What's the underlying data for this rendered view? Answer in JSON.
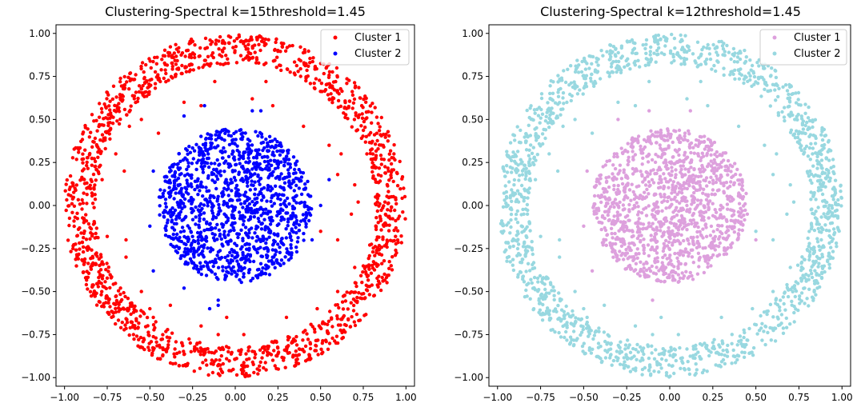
{
  "chart_data": [
    {
      "type": "scatter",
      "title": "Clustering-Spectral k=15threshold=1.45",
      "xlabel": "",
      "ylabel": "",
      "xlim": [
        -1.05,
        1.05
      ],
      "ylim": [
        -1.05,
        1.05
      ],
      "xticks": [
        -1.0,
        -0.75,
        -0.5,
        -0.25,
        0.0,
        0.25,
        0.5,
        0.75,
        1.0
      ],
      "xtick_labels": [
        "−1.00",
        "−0.75",
        "−0.50",
        "−0.25",
        "0.00",
        "0.25",
        "0.50",
        "0.75",
        "1.00"
      ],
      "yticks": [
        -1.0,
        -0.75,
        -0.5,
        -0.25,
        0.0,
        0.25,
        0.5,
        0.75,
        1.0
      ],
      "ytick_labels": [
        "−1.00",
        "−0.75",
        "−0.50",
        "−0.25",
        "0.00",
        "0.25",
        "0.50",
        "0.75",
        "1.00"
      ],
      "grid": false,
      "legend": {
        "position": "top-right"
      },
      "series": [
        {
          "name": "Cluster 1",
          "color": "#ff0000",
          "shape": "ring",
          "r_inner": 0.82,
          "r_outer": 1.0,
          "count": 1500,
          "stray_points": [
            [
              -0.62,
              0.46
            ],
            [
              -0.55,
              0.5
            ],
            [
              -0.45,
              0.42
            ],
            [
              -0.3,
              0.6
            ],
            [
              -0.2,
              0.58
            ],
            [
              0.1,
              0.62
            ],
            [
              0.22,
              0.58
            ],
            [
              0.4,
              0.46
            ],
            [
              0.55,
              0.35
            ],
            [
              0.62,
              0.3
            ],
            [
              0.6,
              0.18
            ],
            [
              0.7,
              0.12
            ],
            [
              -0.65,
              0.2
            ],
            [
              -0.7,
              0.3
            ],
            [
              -0.78,
              0.15
            ],
            [
              0.68,
              -0.05
            ],
            [
              0.72,
              0.02
            ],
            [
              -0.75,
              -0.18
            ],
            [
              -0.64,
              -0.2
            ],
            [
              -0.64,
              -0.3
            ],
            [
              -0.8,
              -0.45
            ],
            [
              -0.55,
              -0.5
            ],
            [
              -0.5,
              -0.6
            ],
            [
              -0.38,
              -0.58
            ],
            [
              -0.48,
              -0.65
            ],
            [
              0.3,
              -0.65
            ],
            [
              0.48,
              -0.6
            ],
            [
              0.6,
              -0.5
            ],
            [
              0.7,
              -0.36
            ],
            [
              0.5,
              -0.15
            ],
            [
              0.6,
              -0.2
            ],
            [
              -0.2,
              -0.7
            ],
            [
              -0.1,
              -0.75
            ],
            [
              0.05,
              -0.75
            ],
            [
              -0.05,
              -0.65
            ],
            [
              -0.35,
              0.75
            ],
            [
              0.35,
              0.76
            ],
            [
              0.18,
              0.72
            ],
            [
              -0.12,
              0.72
            ],
            [
              -0.55,
              0.68
            ]
          ]
        },
        {
          "name": "Cluster 2",
          "color": "#0000ff",
          "shape": "disk",
          "radius": 0.45,
          "count": 1250,
          "stray_points": [
            [
              -0.18,
              0.58
            ],
            [
              -0.3,
              0.52
            ],
            [
              -0.48,
              0.2
            ],
            [
              -0.5,
              -0.12
            ],
            [
              -0.48,
              -0.38
            ],
            [
              -0.3,
              -0.48
            ],
            [
              -0.15,
              -0.6
            ],
            [
              -0.1,
              -0.58
            ],
            [
              0.1,
              0.55
            ],
            [
              0.15,
              0.55
            ],
            [
              0.42,
              -0.05
            ],
            [
              0.5,
              0.0
            ],
            [
              0.55,
              0.15
            ],
            [
              0.45,
              -0.2
            ],
            [
              -0.1,
              -0.55
            ]
          ]
        }
      ]
    },
    {
      "type": "scatter",
      "title": "Clustering-Spectral k=12threshold=1.45",
      "xlabel": "",
      "ylabel": "",
      "xlim": [
        -1.05,
        1.05
      ],
      "ylim": [
        -1.05,
        1.05
      ],
      "xticks": [
        -1.0,
        -0.75,
        -0.5,
        -0.25,
        0.0,
        0.25,
        0.5,
        0.75,
        1.0
      ],
      "xtick_labels": [
        "−1.00",
        "−0.75",
        "−0.50",
        "−0.25",
        "0.00",
        "0.25",
        "0.50",
        "0.75",
        "1.00"
      ],
      "yticks": [
        -1.0,
        -0.75,
        -0.5,
        -0.25,
        0.0,
        0.25,
        0.5,
        0.75,
        1.0
      ],
      "ytick_labels": [
        "−1.00",
        "−0.75",
        "−0.50",
        "−0.25",
        "0.00",
        "0.25",
        "0.50",
        "0.75",
        "1.00"
      ],
      "grid": false,
      "legend": {
        "position": "top-right"
      },
      "series": [
        {
          "name": "Cluster 1",
          "color": "#dda0dd",
          "shape": "disk",
          "radius": 0.45,
          "count": 1250,
          "stray_points": [
            [
              -0.48,
              0.2
            ],
            [
              -0.5,
              -0.12
            ],
            [
              -0.45,
              -0.38
            ],
            [
              0.45,
              -0.05
            ],
            [
              0.5,
              -0.2
            ],
            [
              0.42,
              0.15
            ],
            [
              -0.3,
              0.5
            ],
            [
              -0.12,
              0.55
            ],
            [
              0.12,
              0.55
            ],
            [
              -0.1,
              -0.55
            ]
          ]
        },
        {
          "name": "Cluster 2",
          "color": "#98d8e0",
          "shape": "ring",
          "r_inner": 0.82,
          "r_outer": 1.0,
          "count": 1500,
          "stray_points": [
            [
              -0.62,
              0.46
            ],
            [
              -0.55,
              0.5
            ],
            [
              -0.45,
              0.42
            ],
            [
              -0.3,
              0.6
            ],
            [
              -0.2,
              0.58
            ],
            [
              0.1,
              0.62
            ],
            [
              0.22,
              0.58
            ],
            [
              0.4,
              0.46
            ],
            [
              0.55,
              0.35
            ],
            [
              0.62,
              0.3
            ],
            [
              0.6,
              0.18
            ],
            [
              0.7,
              0.12
            ],
            [
              -0.65,
              0.2
            ],
            [
              -0.7,
              0.3
            ],
            [
              -0.78,
              0.15
            ],
            [
              0.68,
              -0.05
            ],
            [
              0.72,
              0.02
            ],
            [
              -0.75,
              -0.18
            ],
            [
              -0.64,
              -0.2
            ],
            [
              -0.64,
              -0.3
            ],
            [
              -0.8,
              -0.45
            ],
            [
              -0.55,
              -0.5
            ],
            [
              -0.5,
              -0.6
            ],
            [
              -0.38,
              -0.58
            ],
            [
              -0.48,
              -0.65
            ],
            [
              0.3,
              -0.65
            ],
            [
              0.48,
              -0.6
            ],
            [
              0.6,
              -0.5
            ],
            [
              0.7,
              -0.36
            ],
            [
              0.5,
              -0.15
            ],
            [
              0.6,
              -0.2
            ],
            [
              -0.2,
              -0.7
            ],
            [
              -0.1,
              -0.75
            ],
            [
              0.05,
              -0.75
            ],
            [
              -0.05,
              -0.65
            ],
            [
              -0.35,
              0.75
            ],
            [
              0.35,
              0.76
            ],
            [
              0.18,
              0.72
            ],
            [
              -0.12,
              0.72
            ],
            [
              -0.55,
              0.68
            ]
          ]
        }
      ]
    }
  ]
}
